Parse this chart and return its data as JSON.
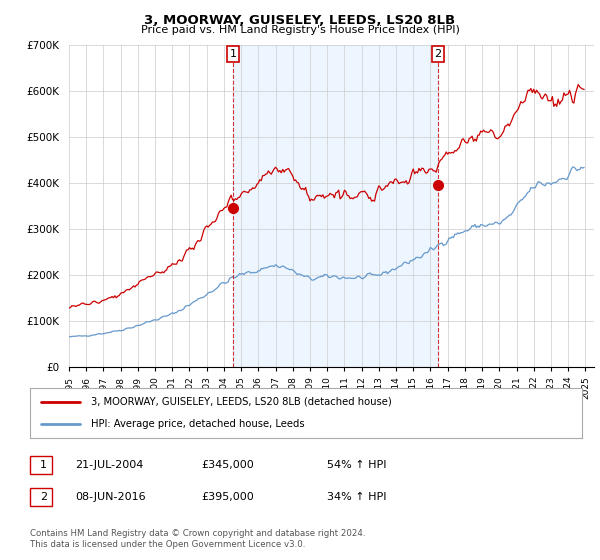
{
  "title": "3, MOORWAY, GUISELEY, LEEDS, LS20 8LB",
  "subtitle": "Price paid vs. HM Land Registry's House Price Index (HPI)",
  "ylim": [
    0,
    700000
  ],
  "xlim_start": 1995.0,
  "xlim_end": 2025.5,
  "sale1_x": 2004.54,
  "sale1_y": 345000,
  "sale1_label": "1",
  "sale2_x": 2016.44,
  "sale2_y": 395000,
  "sale2_label": "2",
  "red_color": "#cc0000",
  "blue_color": "#6699cc",
  "blue_fill": "#ddeeff",
  "grid_color": "#cccccc",
  "background_color": "#ffffff",
  "legend_line1": "3, MOORWAY, GUISELEY, LEEDS, LS20 8LB (detached house)",
  "legend_line2": "HPI: Average price, detached house, Leeds",
  "footnote": "Contains HM Land Registry data © Crown copyright and database right 2024.\nThis data is licensed under the Open Government Licence v3.0."
}
